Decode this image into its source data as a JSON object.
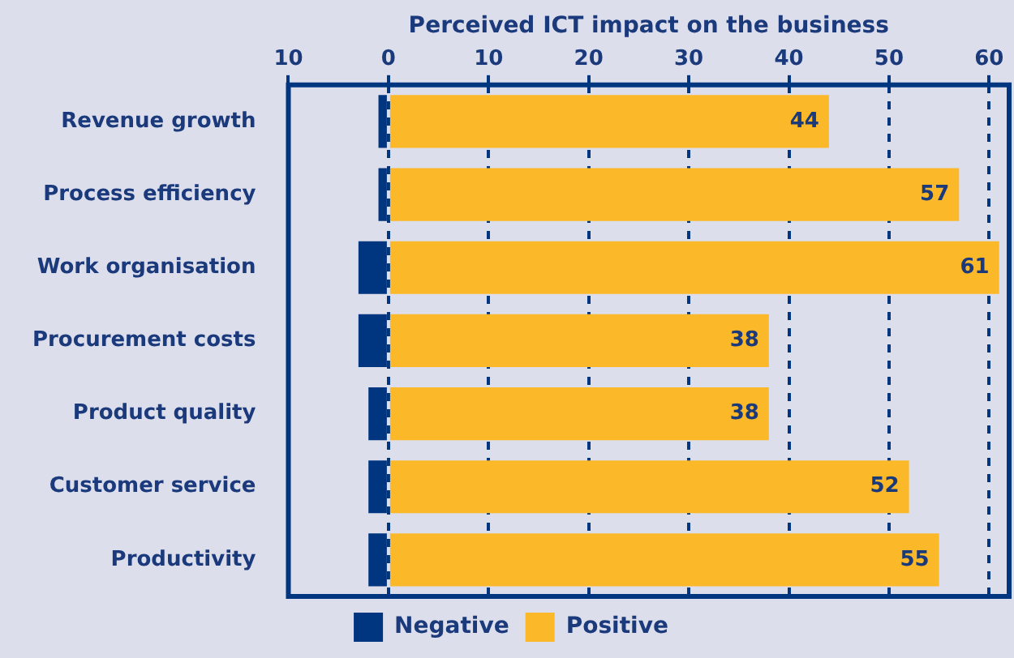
{
  "chart_data": {
    "type": "bar",
    "orientation": "horizontal",
    "stacked": true,
    "xlabel": "Perceived ICT impact on the business",
    "categories": [
      "Revenue growth",
      "Process efficiency",
      "Work organisation",
      "Procurement costs",
      "Product quality",
      "Customer service",
      "Productivity"
    ],
    "series": [
      {
        "name": "Negative",
        "color": "#003580",
        "values": [
          -1,
          -1,
          -3,
          -3,
          -2,
          -2,
          -2
        ]
      },
      {
        "name": "Positive",
        "color": "#fbb829",
        "values": [
          44,
          57,
          61,
          38,
          38,
          52,
          55
        ],
        "value_labels": [
          "44",
          "57",
          "61",
          "38",
          "38",
          "52",
          "55"
        ]
      }
    ],
    "xlim": [
      -10,
      62
    ],
    "xticks": [
      {
        "value": -10,
        "label": "10"
      },
      0,
      10,
      20,
      30,
      40,
      50,
      60
    ],
    "grid": "x",
    "line_style": "dashed",
    "legend": "bottom"
  }
}
